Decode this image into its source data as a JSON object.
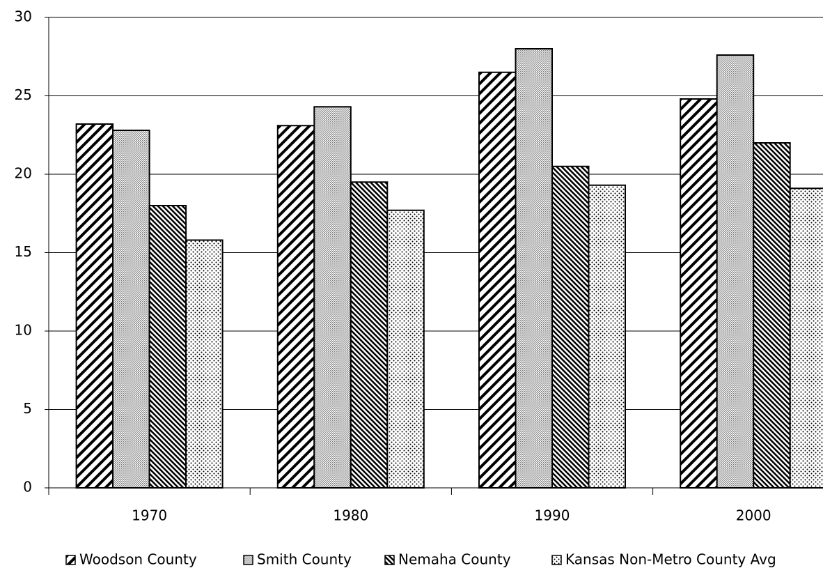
{
  "chart_data": {
    "type": "bar",
    "categories": [
      "1970",
      "1980",
      "1990",
      "2000"
    ],
    "series": [
      {
        "name": "Woodson County",
        "color": "#000000",
        "values": [
          23.2,
          23.1,
          26.5,
          24.8
        ]
      },
      {
        "name": "Smith County",
        "color": "#000000",
        "values": [
          22.8,
          24.3,
          28.0,
          27.6
        ]
      },
      {
        "name": "Nemaha County",
        "color": "#000000",
        "values": [
          18.0,
          19.5,
          20.5,
          22.0
        ]
      },
      {
        "name": "Kansas Non-Metro County Avg",
        "color": "#000000",
        "values": [
          15.8,
          17.7,
          19.3,
          19.1
        ]
      }
    ],
    "ylim": [
      0,
      30
    ],
    "yticks": [
      0,
      5,
      10,
      15,
      20,
      25,
      30
    ],
    "grid": true,
    "legend": "bottom"
  }
}
